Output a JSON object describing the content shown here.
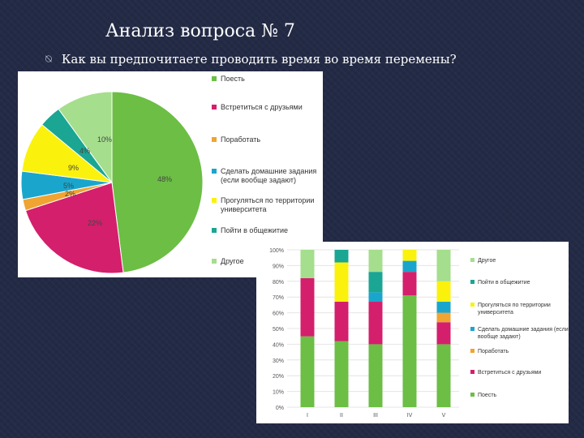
{
  "slide": {
    "title": "Анализ вопроса № 7",
    "question": "Как вы предпочитаете проводить время во время перемены?",
    "bullet_icon": "⍉"
  },
  "chart_data": [
    {
      "type": "pie",
      "categories": [
        "Поесть",
        "Встретиться с друзьями",
        "Поработать",
        "Сделать домашние задания (если вообще задают)",
        "Прогуляться по территории университета",
        "Пойти в общежитие",
        "Другое"
      ],
      "values": [
        48,
        22,
        2,
        5,
        9,
        4,
        10
      ],
      "data_labels": [
        "48%",
        "22%",
        "2%",
        "5%",
        "9%",
        "4%",
        "10%"
      ],
      "colors": [
        "#6cbe45",
        "#d41f6c",
        "#f0a431",
        "#1aa6cc",
        "#faf20d",
        "#1aa693",
        "#a5de8d"
      ],
      "legend": "right"
    },
    {
      "type": "bar",
      "stacked": true,
      "categories": [
        "I",
        "II",
        "III",
        "IV",
        "V"
      ],
      "ylim": [
        0,
        100
      ],
      "yticks": [
        "0%",
        "10%",
        "20%",
        "30%",
        "40%",
        "50%",
        "60%",
        "70%",
        "80%",
        "90%",
        "100%"
      ],
      "series": [
        {
          "name": "Поесть",
          "color": "#6cbe45",
          "values": [
            45,
            42,
            40,
            71,
            40
          ]
        },
        {
          "name": "Встретиться с друзьями",
          "color": "#d41f6c",
          "values": [
            37,
            25,
            27,
            15,
            14
          ]
        },
        {
          "name": "Поработать",
          "color": "#f0a431",
          "values": [
            0,
            0,
            0,
            0,
            6
          ]
        },
        {
          "name": "Сделать домашние задания (если вообще задают)",
          "color": "#1aa6cc",
          "values": [
            0,
            0,
            6,
            7,
            7
          ]
        },
        {
          "name": "Прогуляться по территории университета",
          "color": "#faf20d",
          "values": [
            0,
            25,
            0,
            7,
            13
          ]
        },
        {
          "name": "Пойти в общежитие",
          "color": "#1aa693",
          "values": [
            0,
            8,
            13,
            0,
            0
          ]
        },
        {
          "name": "Другое",
          "color": "#a5de8d",
          "values": [
            18,
            0,
            14,
            0,
            20
          ]
        }
      ],
      "legend_order": [
        "Другое",
        "Пойти в общежитие",
        "Прогуляться по территории университета",
        "Сделать домашние задания (если вообще задают)",
        "Поработать",
        "Встретиться с друзьями",
        "Поесть"
      ],
      "legend": "right"
    }
  ]
}
